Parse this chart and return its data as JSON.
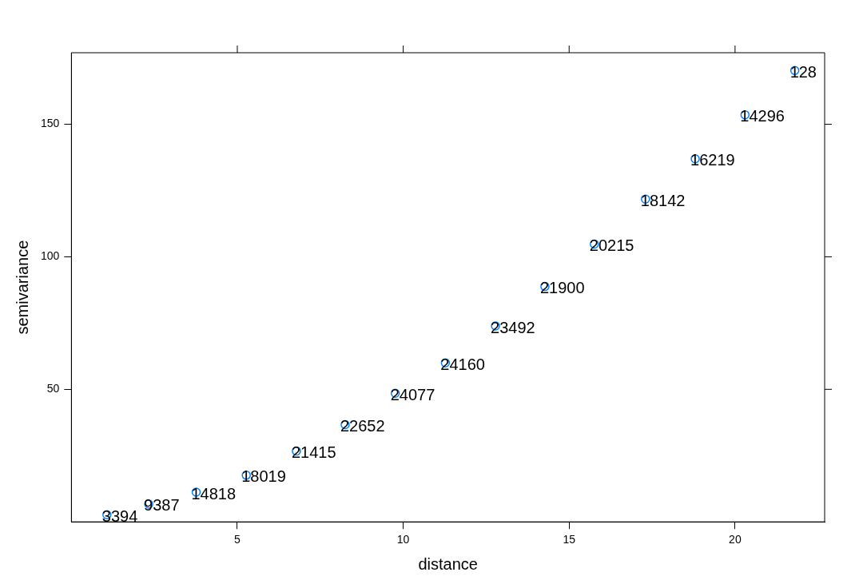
{
  "chart_data": {
    "type": "scatter",
    "xlabel": "distance",
    "ylabel": "semivariance",
    "x": [
      1.07,
      2.33,
      3.76,
      5.27,
      6.78,
      8.25,
      9.76,
      11.27,
      12.78,
      14.27,
      15.76,
      17.3,
      18.8,
      20.3,
      21.8
    ],
    "series": [
      {
        "color": "#0080ff",
        "values": [
          2.7,
          6.7,
          11.2,
          17.6,
          26.7,
          36.7,
          48.5,
          60,
          73.9,
          88.8,
          104.8,
          121.8,
          137,
          153.6,
          170.3
        ]
      }
    ],
    "xlim": [
      0,
      22.7
    ],
    "xticks": [
      5,
      10,
      15,
      20
    ],
    "ylim": [
      0,
      177
    ],
    "yticks": [
      50,
      100,
      150
    ],
    "marker": "circle",
    "grid": false,
    "legend": false,
    "annotations": [
      {
        "text": "3394",
        "x": 1.07,
        "y": 2.7
      },
      {
        "text": "9387",
        "x": 2.33,
        "y": 6.7
      },
      {
        "text": "14818",
        "x": 3.76,
        "y": 11.2
      },
      {
        "text": "18019",
        "x": 5.27,
        "y": 17.6
      },
      {
        "text": "21415",
        "x": 6.78,
        "y": 26.7
      },
      {
        "text": "22652",
        "x": 8.25,
        "y": 36.7
      },
      {
        "text": "24077",
        "x": 9.76,
        "y": 48.5
      },
      {
        "text": "24160",
        "x": 11.27,
        "y": 60
      },
      {
        "text": "23492",
        "x": 12.78,
        "y": 73.9
      },
      {
        "text": "21900",
        "x": 14.27,
        "y": 88.8
      },
      {
        "text": "20215",
        "x": 15.76,
        "y": 104.8
      },
      {
        "text": "18142",
        "x": 17.3,
        "y": 121.8
      },
      {
        "text": "16219",
        "x": 18.8,
        "y": 137
      },
      {
        "text": "14296",
        "x": 20.3,
        "y": 153.6
      },
      {
        "text": "128",
        "x": 21.8,
        "y": 170.3
      }
    ]
  }
}
